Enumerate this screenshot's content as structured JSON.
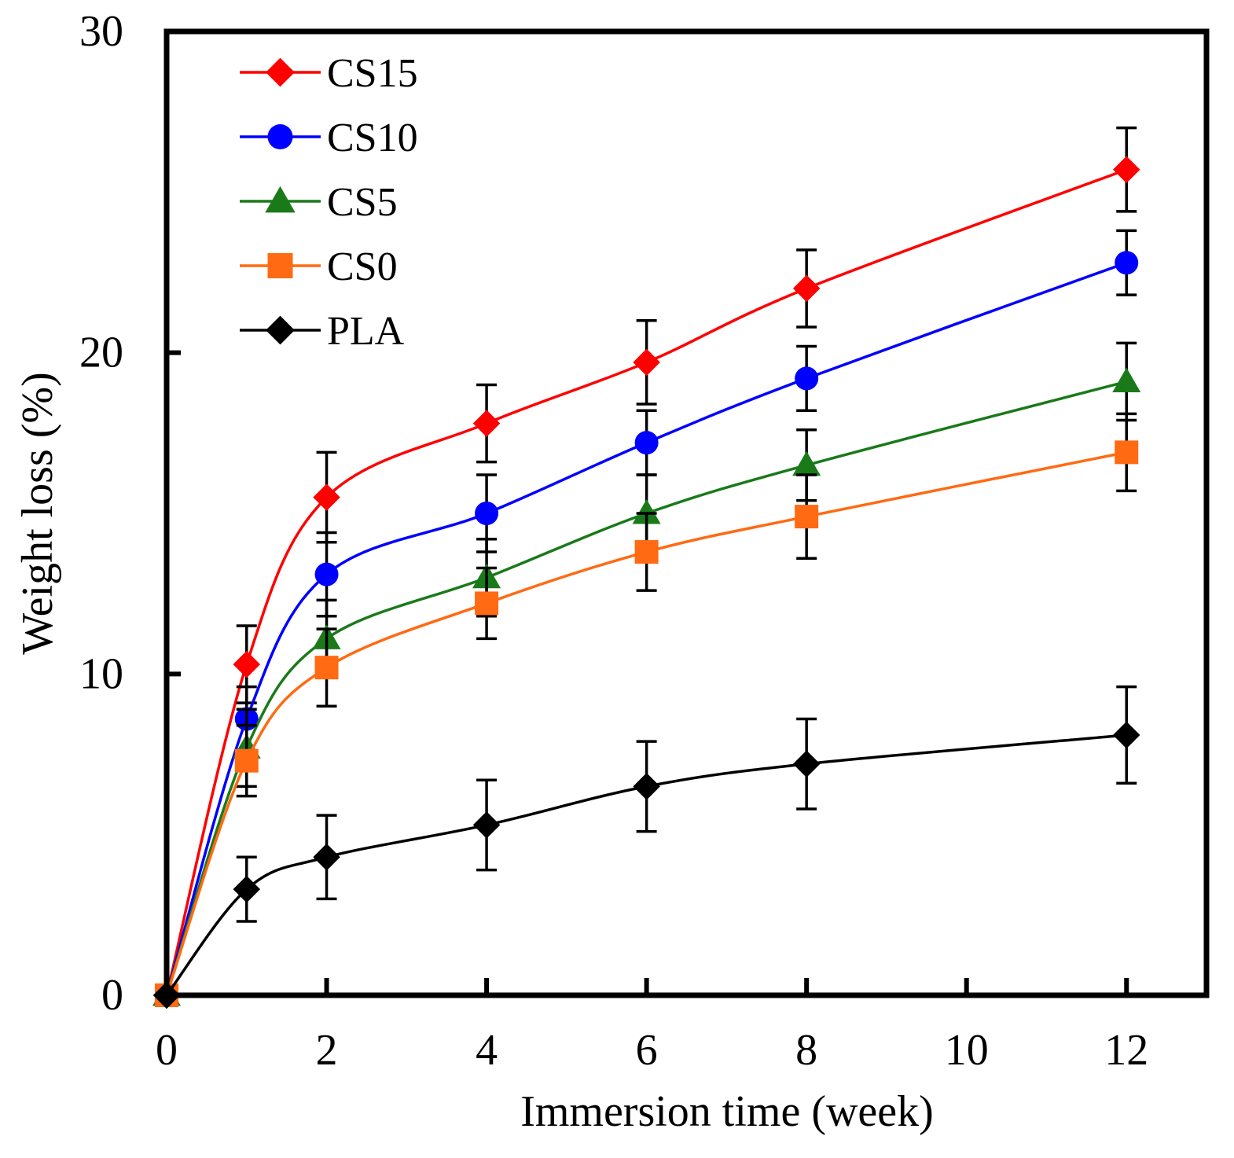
{
  "chart_data": {
    "type": "line",
    "title": "",
    "xlabel": "Immersion time (week)",
    "ylabel": "Weight loss (%)",
    "xlim": [
      0,
      13
    ],
    "ylim": [
      0,
      30
    ],
    "xticks": [
      0,
      2,
      4,
      6,
      8,
      10,
      12
    ],
    "yticks": [
      0,
      10,
      20,
      30
    ],
    "grid": false,
    "legend_position": "top-left",
    "x": [
      0,
      1,
      2,
      4,
      6,
      8,
      12
    ],
    "series": [
      {
        "name": "CS15",
        "color": "#ff0000",
        "marker": "diamond",
        "values": [
          0,
          10.3,
          15.5,
          17.8,
          19.7,
          22.0,
          25.7
        ],
        "errors": [
          0,
          1.2,
          1.4,
          1.2,
          1.3,
          1.2,
          1.3
        ]
      },
      {
        "name": "CS10",
        "color": "#0000ff",
        "marker": "circle",
        "values": [
          0,
          8.6,
          13.1,
          15.0,
          17.2,
          19.2,
          22.8
        ],
        "errors": [
          0,
          1.0,
          1.3,
          1.2,
          1.0,
          1.0,
          1.0
        ]
      },
      {
        "name": "CS5",
        "color": "#1a7a1a",
        "marker": "triangle",
        "values": [
          0,
          7.7,
          11.1,
          13.0,
          15.0,
          16.5,
          19.1
        ],
        "errors": [
          0,
          1.2,
          1.2,
          1.2,
          1.2,
          1.1,
          1.2
        ]
      },
      {
        "name": "CS0",
        "color": "#ff6a13",
        "marker": "square",
        "values": [
          0,
          7.3,
          10.2,
          12.2,
          13.8,
          14.9,
          16.9
        ],
        "errors": [
          0,
          1.1,
          1.2,
          1.1,
          1.2,
          1.3,
          1.2
        ]
      },
      {
        "name": "PLA",
        "color": "#000000",
        "marker": "diamond",
        "values": [
          0,
          3.3,
          4.3,
          5.3,
          6.5,
          7.2,
          8.1
        ],
        "errors": [
          0,
          1.0,
          1.3,
          1.4,
          1.4,
          1.4,
          1.5
        ]
      }
    ]
  }
}
